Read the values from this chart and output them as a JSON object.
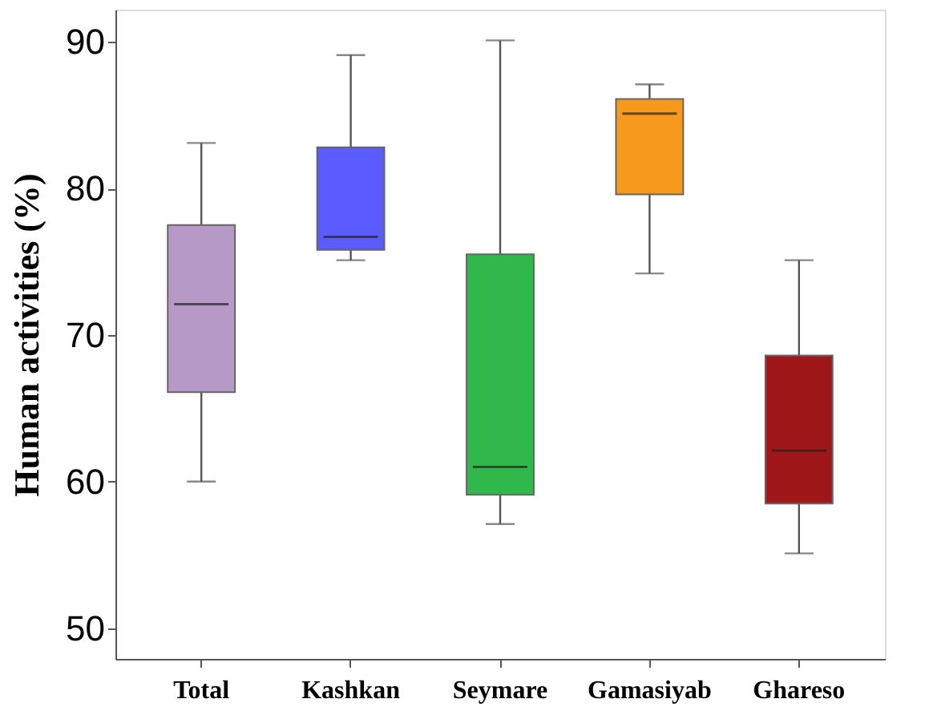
{
  "chart_data": {
    "type": "box",
    "ylabel": "Human activities (%)",
    "categories": [
      "Total",
      "Kashkan",
      "Seymare",
      "Gamasiyab",
      "Ghareso"
    ],
    "colors": [
      "#b799c8",
      "#5a5cff",
      "#31b84a",
      "#f7991d",
      "#a0171a"
    ],
    "boxes": [
      {
        "low": 60.0,
        "q1": 66.1,
        "median": 72.1,
        "q3": 77.5,
        "high": 83.1
      },
      {
        "low": 75.1,
        "q1": 75.8,
        "median": 76.7,
        "q3": 82.8,
        "high": 89.1
      },
      {
        "low": 57.1,
        "q1": 59.1,
        "median": 61.0,
        "q3": 75.5,
        "high": 90.1
      },
      {
        "low": 74.2,
        "q1": 79.6,
        "median": 85.1,
        "q3": 86.1,
        "high": 87.1
      },
      {
        "low": 55.1,
        "q1": 58.5,
        "median": 62.1,
        "q3": 68.6,
        "high": 75.1
      }
    ],
    "ylim": [
      47.9,
      92.2
    ],
    "yticks": [
      50,
      60,
      70,
      80,
      90
    ]
  }
}
